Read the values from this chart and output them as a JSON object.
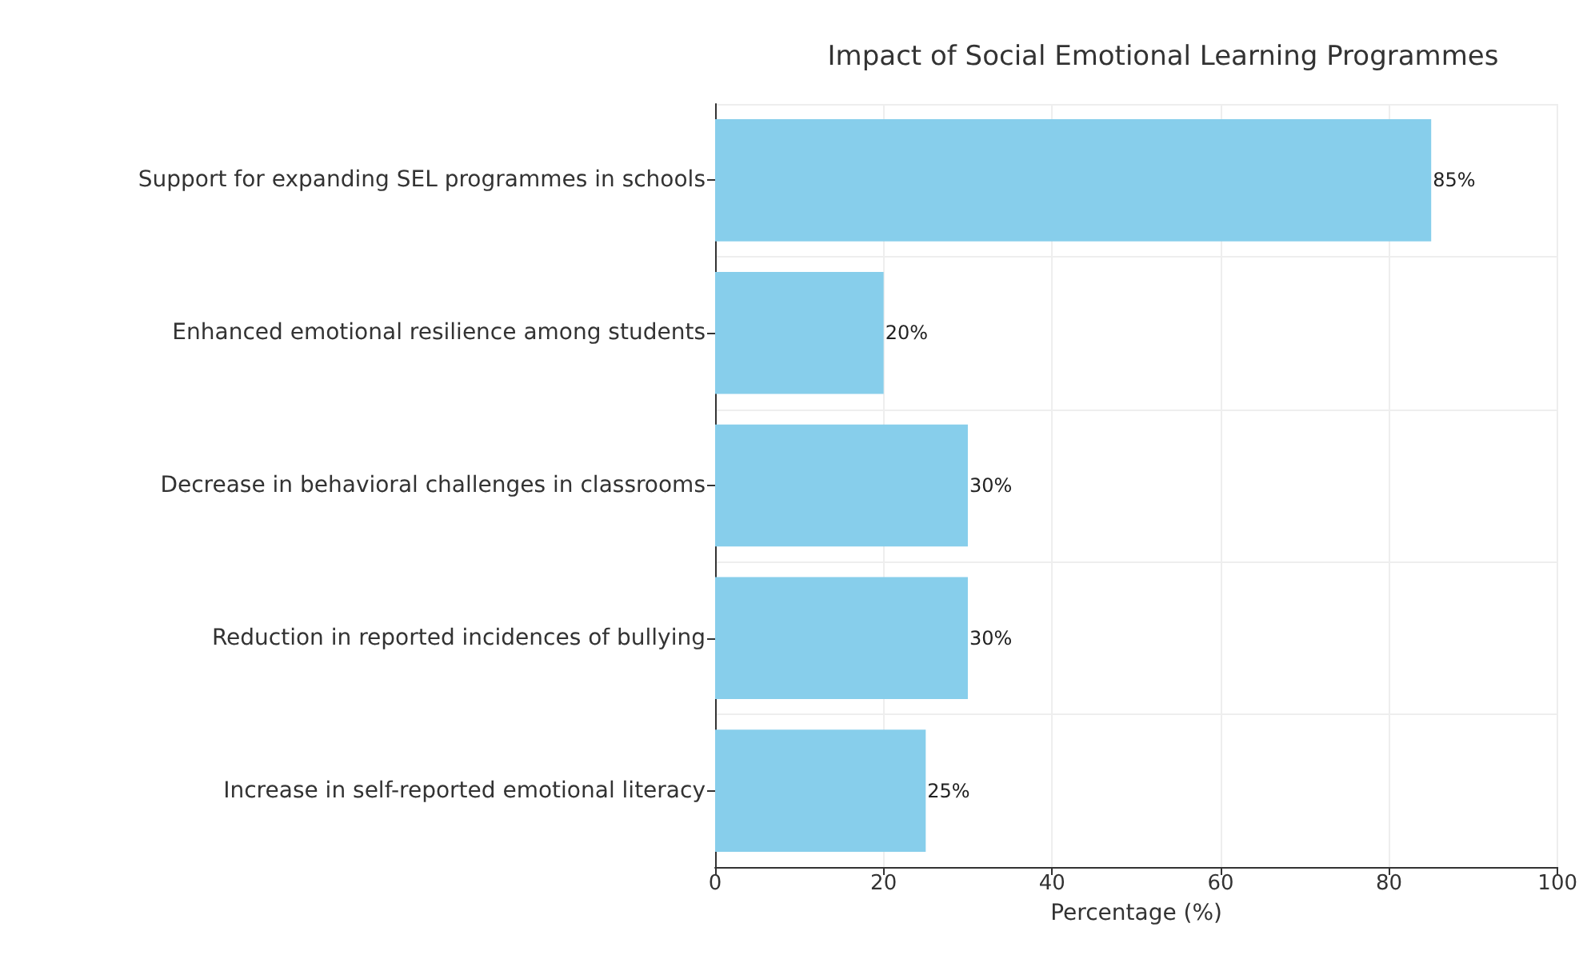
{
  "chart_data": {
    "type": "bar",
    "orientation": "horizontal",
    "title": "Impact of Social Emotional Learning Programmes",
    "xlabel": "Percentage (%)",
    "categories": [
      "Support for expanding SEL programmes in schools",
      "Enhanced emotional resilience among students",
      "Decrease in behavioral challenges in classrooms",
      "Reduction in reported incidences of bullying",
      "Increase in self-reported emotional literacy"
    ],
    "values": [
      85,
      20,
      30,
      30,
      25
    ],
    "value_labels": [
      "85%",
      "20%",
      "30%",
      "30%",
      "25%"
    ],
    "color": "#87ceeb",
    "xlim": [
      0,
      100
    ],
    "xticks": [
      0,
      20,
      40,
      60,
      80,
      100
    ],
    "grid": true
  }
}
